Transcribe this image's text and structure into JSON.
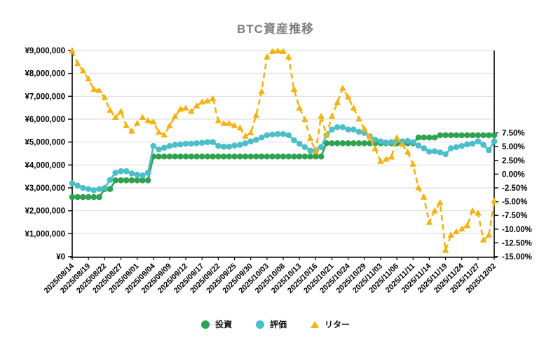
{
  "chart": {
    "title": "BTC資産推移",
    "legend": [
      {
        "label": "投資",
        "color": "#2fa24f",
        "marker": "circle"
      },
      {
        "label": "評価",
        "color": "#4bbfc9",
        "marker": "circle"
      },
      {
        "label": "リター",
        "color": "#f6b211",
        "marker": "triangle"
      }
    ]
  },
  "chart_data": {
    "type": "line",
    "title": "BTC資産推移",
    "grid": "horizontal",
    "legend_position": "bottom",
    "colors": {
      "grid": "#d9d9d9",
      "axis": "#000000",
      "title": "#7f7f7f"
    },
    "x": [
      "2025/08/14",
      "2025/08/15",
      "2025/08/18",
      "2025/08/19",
      "2025/08/20",
      "2025/08/21",
      "2025/08/22",
      "2025/08/25",
      "2025/08/26",
      "2025/08/27",
      "2025/08/28",
      "2025/08/29",
      "2025/09/01",
      "2025/09/02",
      "2025/09/03",
      "2025/09/04",
      "2025/09/05",
      "2025/09/08",
      "2025/09/09",
      "2025/09/10",
      "2025/09/11",
      "2025/09/12",
      "2025/09/15",
      "2025/09/16",
      "2025/09/17",
      "2025/09/18",
      "2025/09/19",
      "2025/09/22",
      "2025/09/23",
      "2025/09/24",
      "2025/09/25",
      "2025/09/26",
      "2025/09/29",
      "2025/09/30",
      "2025/10/01",
      "2025/10/02",
      "2025/10/03",
      "2025/10/06",
      "2025/10/07",
      "2025/10/08",
      "2025/10/09",
      "2025/10/10",
      "2025/10/13",
      "2025/10/14",
      "2025/10/15",
      "2025/10/16",
      "2025/10/17",
      "2025/10/20",
      "2025/10/21",
      "2025/10/22",
      "2025/10/23",
      "2025/10/24",
      "2025/10/27",
      "2025/10/28",
      "2025/10/29",
      "2025/10/30",
      "2025/10/31",
      "2025/11/03",
      "2025/11/04",
      "2025/11/05",
      "2025/11/06",
      "2025/11/07",
      "2025/11/10",
      "2025/11/11",
      "2025/11/12",
      "2025/11/13",
      "2025/11/14",
      "2025/11/17",
      "2025/11/18",
      "2025/11/19",
      "2025/11/20",
      "2025/11/21",
      "2025/11/24",
      "2025/11/25",
      "2025/11/26",
      "2025/11/27",
      "2025/11/28",
      "2025/12/01",
      "2025/12/02"
    ],
    "x_tick_every": 3,
    "x_tick_labels": [
      "2025/08/14",
      "2025/08/19",
      "2025/08/22",
      "2025/08/27",
      "2025/09/01",
      "2025/09/04",
      "2025/09/09",
      "2025/09/12",
      "2025/09/17",
      "2025/09/22",
      "2025/09/25",
      "2025/09/30",
      "2025/10/03",
      "2025/10/08",
      "2025/10/13",
      "2025/10/16",
      "2025/10/21",
      "2025/10/24",
      "2025/10/29",
      "2025/11/03",
      "2025/11/06",
      "2025/11/11",
      "2025/11/14",
      "2025/11/19",
      "2025/11/24",
      "2025/11/27",
      "2025/12/02"
    ],
    "left_axis": {
      "min": 0,
      "max": 9000000,
      "tick_values": [
        0,
        1000000,
        2000000,
        3000000,
        4000000,
        5000000,
        6000000,
        7000000,
        8000000,
        9000000
      ],
      "tick_labels": [
        "¥0",
        "¥1,000,000",
        "¥2,000,000",
        "¥3,000,000",
        "¥4,000,000",
        "¥5,000,000",
        "¥6,000,000",
        "¥7,000,000",
        "¥8,000,000",
        "¥9,000,000"
      ]
    },
    "right_axis": {
      "min": -15,
      "max": 22.5,
      "unit": "%",
      "tick_values": [
        7.5,
        5,
        2.5,
        0,
        -2.5,
        -5,
        -7.5,
        -10,
        -12.5,
        -15
      ],
      "tick_labels": [
        "7.50%",
        "5.00%",
        "2.50%",
        "0.00%",
        "-2.50%",
        "-5.00%",
        "-7.50%",
        "-10.00%",
        "-12.50%",
        "-15.00%"
      ]
    },
    "series": [
      {
        "name": "投資",
        "axis": "left",
        "color": "#2fa24f",
        "marker": "circle",
        "line": "solid",
        "values": [
          2600000,
          2600000,
          2600000,
          2600000,
          2600000,
          2600000,
          2950000,
          2950000,
          3330000,
          3330000,
          3330000,
          3330000,
          3330000,
          3330000,
          3330000,
          4370000,
          4370000,
          4370000,
          4370000,
          4370000,
          4370000,
          4370000,
          4370000,
          4370000,
          4370000,
          4370000,
          4370000,
          4370000,
          4370000,
          4370000,
          4370000,
          4370000,
          4370000,
          4370000,
          4370000,
          4370000,
          4370000,
          4370000,
          4370000,
          4370000,
          4370000,
          4370000,
          4370000,
          4370000,
          4370000,
          4370000,
          4370000,
          4950000,
          4950000,
          4950000,
          4950000,
          4950000,
          4950000,
          4950000,
          4950000,
          4950000,
          4950000,
          4950000,
          4950000,
          4950000,
          4950000,
          4950000,
          4950000,
          4950000,
          5200000,
          5200000,
          5200000,
          5200000,
          5300000,
          5300000,
          5300000,
          5300000,
          5300000,
          5300000,
          5300000,
          5300000,
          5300000,
          5300000,
          5300000
        ]
      },
      {
        "name": "評価",
        "axis": "left",
        "color": "#4bbfc9",
        "marker": "circle",
        "line": "solid",
        "values": [
          3200000,
          3100000,
          3000000,
          2950000,
          2900000,
          2950000,
          3000000,
          3350000,
          3660000,
          3730000,
          3730000,
          3630000,
          3580000,
          3540000,
          3660000,
          4830000,
          4680000,
          4750000,
          4830000,
          4880000,
          4900000,
          4930000,
          4930000,
          4950000,
          4970000,
          5000000,
          5000000,
          4830000,
          4800000,
          4800000,
          4850000,
          4880000,
          4950000,
          5030000,
          5100000,
          5200000,
          5300000,
          5330000,
          5350000,
          5350000,
          5300000,
          5080000,
          4930000,
          4780000,
          4630000,
          4620000,
          4780000,
          5300000,
          5550000,
          5650000,
          5650000,
          5550000,
          5550000,
          5450000,
          5400000,
          5250000,
          5100000,
          5030000,
          4980000,
          5000000,
          5080000,
          5030000,
          5050000,
          5000000,
          4850000,
          4730000,
          4580000,
          4600000,
          4550000,
          4470000,
          4730000,
          4780000,
          4830000,
          4900000,
          4930000,
          5030000,
          4880000,
          4650000,
          5030000
        ]
      },
      {
        "name": "リター",
        "axis": "right",
        "color": "#f6b211",
        "marker": "triangle",
        "line": "dashed",
        "values": [
          22.4,
          20.1,
          18.8,
          17.3,
          15.4,
          15.2,
          13.9,
          11.6,
          10.3,
          11.4,
          8.8,
          7.8,
          9.2,
          10.3,
          9.7,
          9.5,
          7.6,
          7.1,
          8.8,
          10.5,
          11.8,
          12.0,
          11.4,
          12.4,
          13.1,
          13.3,
          13.7,
          9.7,
          9.2,
          9.2,
          8.8,
          8.4,
          6.9,
          7.5,
          10.7,
          15.0,
          21.3,
          22.3,
          22.4,
          22.3,
          21.3,
          15.4,
          12.0,
          9.9,
          6.5,
          4.1,
          10.5,
          7.1,
          10.5,
          13.0,
          15.6,
          14.0,
          12.0,
          10.0,
          8.2,
          6.7,
          4.6,
          2.3,
          2.7,
          3.1,
          6.6,
          5.4,
          4.0,
          1.8,
          -2.5,
          -4.2,
          -8.8,
          -6.7,
          -5.2,
          -13.9,
          -11.1,
          -10.5,
          -10.0,
          -9.4,
          -6.7,
          -7.1,
          -12.0,
          -11.1,
          -4.9
        ]
      }
    ]
  }
}
